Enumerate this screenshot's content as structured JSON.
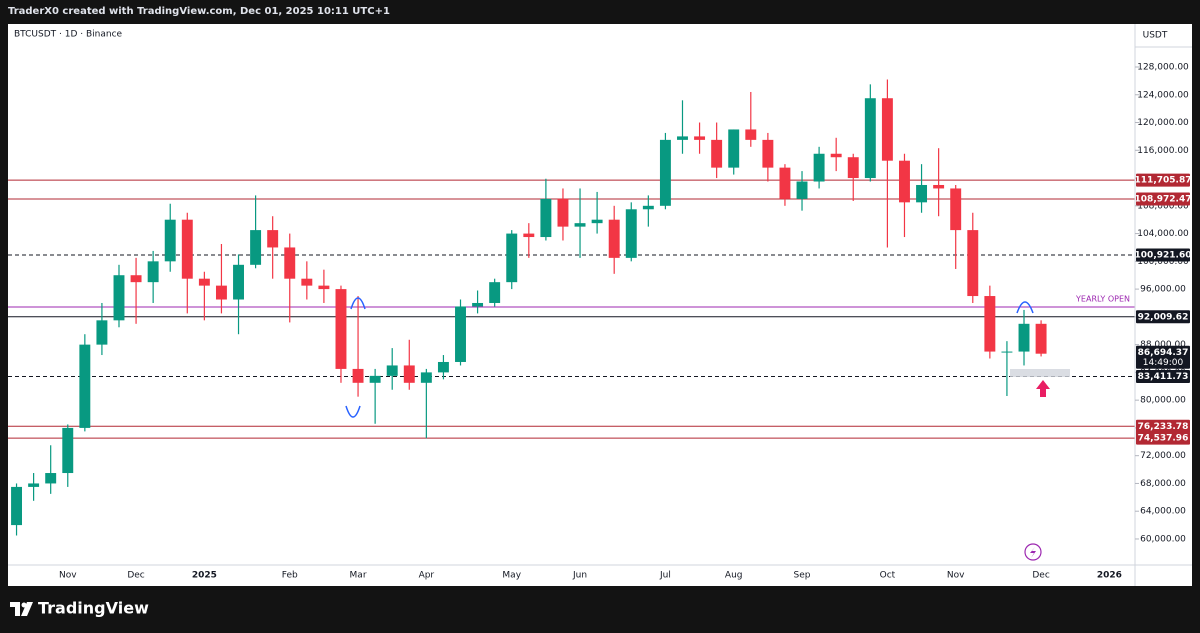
{
  "header": {
    "text": "TraderX0 created with TradingView.com, Dec 01, 2025 10:11 UTC+1"
  },
  "footer": {
    "brand": "TradingView"
  },
  "chart_data": {
    "type": "candlestick",
    "title": "BTCUSDT · 1D · Binance",
    "y_axis_label": "USDT",
    "up_color": "#089981",
    "down_color": "#f23645",
    "grid": false,
    "categories": [
      null,
      null,
      null,
      "Nov",
      null,
      null,
      null,
      "Dec",
      null,
      null,
      null,
      "2025",
      null,
      null,
      null,
      null,
      "Feb",
      null,
      null,
      null,
      "Mar",
      null,
      null,
      null,
      "Apr",
      null,
      null,
      null,
      null,
      "May",
      null,
      null,
      null,
      "Jun",
      null,
      null,
      null,
      null,
      "Jul",
      null,
      null,
      null,
      "Aug",
      null,
      null,
      null,
      "Sep",
      null,
      null,
      null,
      null,
      "Oct",
      null,
      null,
      null,
      "Nov",
      null,
      null,
      null,
      null,
      "Dec",
      null,
      null,
      null,
      "2026",
      null
    ],
    "open": [
      62000,
      67500,
      68000,
      69500,
      76000,
      88000,
      91500,
      98000,
      97000,
      100000,
      106000,
      97500,
      96500,
      94500,
      99500,
      104500,
      102000,
      97500,
      96500,
      96000,
      84500,
      82500,
      83500,
      85000,
      82500,
      84000,
      85500,
      93500,
      94000,
      97000,
      104000,
      103500,
      109000,
      105000,
      105500,
      106000,
      100500,
      107500,
      108000,
      117500,
      118000,
      117500,
      113500,
      119000,
      117500,
      113500,
      109000,
      111500,
      115500,
      115000,
      112000,
      123500,
      114500,
      108500,
      111000,
      110500,
      104500,
      95000,
      87000,
      87000,
      91000,
      null,
      null,
      null,
      null,
      null
    ],
    "high": [
      68000,
      69500,
      73500,
      76500,
      89500,
      94000,
      99500,
      100500,
      101500,
      108300,
      107000,
      98500,
      102500,
      101000,
      109500,
      106500,
      104000,
      100000,
      98800,
      96500,
      95000,
      84500,
      87500,
      88700,
      84500,
      86500,
      94500,
      95800,
      97500,
      104500,
      105500,
      111900,
      110500,
      110500,
      110000,
      108000,
      108500,
      109500,
      118500,
      123200,
      120000,
      120000,
      119000,
      124400,
      118500,
      114000,
      113000,
      116500,
      117800,
      115500,
      125500,
      126200,
      115500,
      114000,
      116300,
      111000,
      107000,
      96500,
      88500,
      93000,
      91500,
      null,
      null,
      null,
      null,
      null
    ],
    "low": [
      60500,
      65500,
      66500,
      67500,
      75500,
      86500,
      90500,
      91000,
      94000,
      98500,
      92500,
      91500,
      92500,
      89500,
      99000,
      97500,
      91200,
      94500,
      94000,
      82500,
      80500,
      76600,
      81500,
      81500,
      74500,
      83000,
      85000,
      92500,
      93500,
      96000,
      100500,
      103000,
      103000,
      100500,
      104000,
      98200,
      100000,
      105000,
      107500,
      115500,
      115500,
      112000,
      112500,
      116500,
      111500,
      108000,
      107300,
      110500,
      113000,
      108700,
      111500,
      102000,
      103500,
      107000,
      106500,
      98900,
      94000,
      86000,
      80600,
      85000,
      86300,
      null,
      null,
      null,
      null,
      null
    ],
    "close": [
      67500,
      68000,
      69500,
      76000,
      88000,
      91500,
      98000,
      97000,
      100000,
      106000,
      97500,
      96500,
      94500,
      99500,
      104500,
      102000,
      97500,
      96500,
      96000,
      84500,
      82500,
      83500,
      85000,
      82500,
      84000,
      85500,
      93500,
      94000,
      97000,
      104000,
      103500,
      109000,
      105000,
      105500,
      106000,
      100500,
      107500,
      108000,
      117500,
      118000,
      117500,
      113500,
      119000,
      117500,
      113500,
      109000,
      111500,
      115500,
      115000,
      112000,
      123500,
      114500,
      108500,
      111000,
      110500,
      104500,
      95000,
      87000,
      87000,
      91000,
      86694.37,
      null,
      null,
      null,
      null,
      null
    ],
    "ylim": [
      56250,
      134050
    ],
    "yticks": [
      {
        "value": 60000,
        "label": "60,000.00"
      },
      {
        "value": 64000,
        "label": "64,000.00"
      },
      {
        "value": 68000,
        "label": "68,000.00"
      },
      {
        "value": 72000,
        "label": "72,000.00"
      },
      {
        "value": 76000,
        "label": "76,000.00"
      },
      {
        "value": 80000,
        "label": "80,000.00"
      },
      {
        "value": 84000,
        "label": "84,000.00"
      },
      {
        "value": 88000,
        "label": "88,000.00"
      },
      {
        "value": 92000,
        "label": "92,000.00"
      },
      {
        "value": 96000,
        "label": "96,000.00"
      },
      {
        "value": 100000,
        "label": "100,000.00"
      },
      {
        "value": 104000,
        "label": "104,000.00"
      },
      {
        "value": 108000,
        "label": "108,000.00"
      },
      {
        "value": 112000,
        "label": "112,000.00"
      },
      {
        "value": 116000,
        "label": "116,000.00"
      },
      {
        "value": 120000,
        "label": "120,000.00"
      },
      {
        "value": 124000,
        "label": "124,000.00"
      },
      {
        "value": 128000,
        "label": "128,000.00"
      }
    ],
    "levels": [
      {
        "value": 111705.87,
        "label": "111,705.87",
        "color": "#b22833",
        "style": "solid"
      },
      {
        "value": 108972.47,
        "label": "108,972.47",
        "color": "#b22833",
        "style": "solid"
      },
      {
        "value": 100921.6,
        "label": "100,921.60",
        "color": "#131722",
        "style": "dashed"
      },
      {
        "value": 93429,
        "name": "YEARLY OPEN",
        "color": "#9c27b0",
        "style": "solid"
      },
      {
        "value": 92009.62,
        "label": "92,009.62",
        "color": "#131722",
        "style": "solid"
      },
      {
        "value": 83411.73,
        "label": "83,411.73",
        "color": "#131722",
        "style": "dashed"
      },
      {
        "value": 76233.78,
        "label": "76,233.78",
        "color": "#b22833",
        "style": "solid"
      },
      {
        "value": 74537.96,
        "label": "74,537.96",
        "color": "#b22833",
        "style": "solid"
      }
    ],
    "last_price": {
      "value": 86694.37,
      "label": "86,694.37",
      "countdown": "14:49:00"
    }
  }
}
